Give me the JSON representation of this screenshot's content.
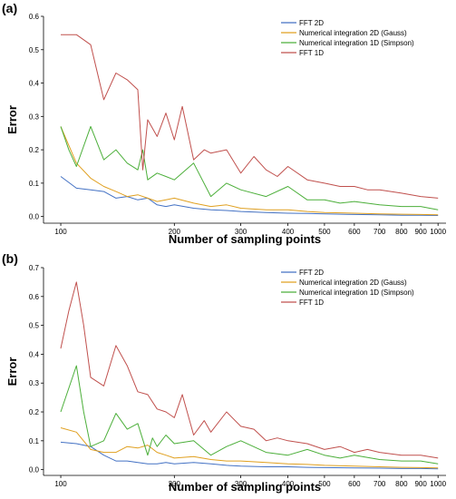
{
  "chart_data": [
    {
      "type": "line",
      "panel_label": "(a)",
      "xlabel": "Number of sampling points",
      "ylabel": "Error",
      "x_scale": "log",
      "xlim": [
        90,
        1050
      ],
      "ylim": [
        -0.02,
        0.6
      ],
      "x_ticks": [
        100,
        200,
        300,
        400,
        500,
        600,
        700,
        800,
        900,
        1000
      ],
      "x_tick_labels": [
        "100",
        "200",
        "300",
        "400",
        "500",
        "600",
        "700",
        "800",
        "900",
        "1000"
      ],
      "y_ticks": [
        0.0,
        0.1,
        0.2,
        0.3,
        0.4,
        0.5,
        0.6
      ],
      "y_tick_labels": [
        "0.0",
        "0.1",
        "0.2",
        "0.3",
        "0.4",
        "0.5",
        "0.6"
      ],
      "grid": false,
      "legend_position": "top-right",
      "series": [
        {
          "name": "FFT 2D",
          "color": "#4472c4",
          "x": [
            100,
            110,
            120,
            130,
            140,
            150,
            160,
            170,
            180,
            190,
            200,
            225,
            250,
            275,
            300,
            350,
            400,
            450,
            500,
            600,
            700,
            800,
            900,
            1000
          ],
          "y": [
            0.12,
            0.085,
            0.08,
            0.075,
            0.055,
            0.06,
            0.05,
            0.055,
            0.035,
            0.03,
            0.035,
            0.025,
            0.02,
            0.018,
            0.015,
            0.012,
            0.01,
            0.009,
            0.008,
            0.006,
            0.005,
            0.004,
            0.004,
            0.003
          ]
        },
        {
          "name": "Numerical integration 2D (Gauss)",
          "color": "#e0a020",
          "x": [
            100,
            110,
            120,
            130,
            140,
            150,
            160,
            170,
            180,
            190,
            200,
            225,
            250,
            275,
            300,
            350,
            400,
            450,
            500,
            600,
            700,
            800,
            900,
            1000
          ],
          "y": [
            0.27,
            0.16,
            0.115,
            0.09,
            0.075,
            0.06,
            0.065,
            0.055,
            0.045,
            0.05,
            0.055,
            0.04,
            0.03,
            0.035,
            0.025,
            0.02,
            0.02,
            0.015,
            0.012,
            0.01,
            0.008,
            0.007,
            0.006,
            0.005
          ]
        },
        {
          "name": "Numerical integration 1D (Simpson)",
          "color": "#4caf3a",
          "x": [
            100,
            105,
            110,
            120,
            130,
            140,
            150,
            160,
            165,
            170,
            180,
            190,
            200,
            225,
            250,
            275,
            300,
            350,
            400,
            450,
            500,
            550,
            600,
            700,
            800,
            900,
            1000
          ],
          "y": [
            0.27,
            0.2,
            0.15,
            0.27,
            0.17,
            0.2,
            0.16,
            0.14,
            0.2,
            0.11,
            0.13,
            0.12,
            0.11,
            0.16,
            0.06,
            0.1,
            0.08,
            0.06,
            0.09,
            0.05,
            0.05,
            0.04,
            0.045,
            0.035,
            0.03,
            0.03,
            0.02
          ]
        },
        {
          "name": "FFT 1D",
          "color": "#c0504d",
          "x": [
            100,
            110,
            120,
            130,
            140,
            150,
            160,
            165,
            170,
            180,
            190,
            200,
            210,
            225,
            240,
            250,
            275,
            300,
            325,
            350,
            375,
            400,
            450,
            500,
            550,
            600,
            650,
            700,
            800,
            900,
            1000
          ],
          "y": [
            0.545,
            0.545,
            0.515,
            0.35,
            0.43,
            0.41,
            0.38,
            0.14,
            0.29,
            0.24,
            0.31,
            0.23,
            0.33,
            0.17,
            0.2,
            0.19,
            0.2,
            0.13,
            0.18,
            0.14,
            0.12,
            0.15,
            0.11,
            0.1,
            0.09,
            0.09,
            0.08,
            0.08,
            0.07,
            0.06,
            0.055
          ]
        }
      ]
    },
    {
      "type": "line",
      "panel_label": "(b)",
      "xlabel": "Number of sampling points",
      "ylabel": "Error",
      "x_scale": "log",
      "xlim": [
        90,
        1050
      ],
      "ylim": [
        -0.02,
        0.7
      ],
      "x_ticks": [
        100,
        200,
        300,
        400,
        500,
        600,
        700,
        800,
        900,
        1000
      ],
      "x_tick_labels": [
        "100",
        "200",
        "300",
        "400",
        "500",
        "600",
        "700",
        "800",
        "900",
        "1000"
      ],
      "y_ticks": [
        0.0,
        0.1,
        0.2,
        0.3,
        0.4,
        0.5,
        0.6,
        0.7
      ],
      "y_tick_labels": [
        "0.0",
        "0.1",
        "0.2",
        "0.3",
        "0.4",
        "0.5",
        "0.6",
        "0.7"
      ],
      "grid": false,
      "legend_position": "top-right",
      "series": [
        {
          "name": "FFT 2D",
          "color": "#4472c4",
          "x": [
            100,
            110,
            120,
            130,
            140,
            150,
            160,
            170,
            180,
            190,
            200,
            225,
            250,
            275,
            300,
            350,
            400,
            450,
            500,
            600,
            700,
            800,
            900,
            1000
          ],
          "y": [
            0.095,
            0.09,
            0.08,
            0.05,
            0.03,
            0.03,
            0.025,
            0.02,
            0.02,
            0.025,
            0.02,
            0.025,
            0.02,
            0.015,
            0.012,
            0.01,
            0.01,
            0.008,
            0.007,
            0.006,
            0.005,
            0.004,
            0.004,
            0.003
          ]
        },
        {
          "name": "Numerical integration 2D (Gauss)",
          "color": "#e0a020",
          "x": [
            100,
            110,
            120,
            130,
            140,
            150,
            160,
            170,
            180,
            190,
            200,
            225,
            250,
            275,
            300,
            350,
            400,
            450,
            500,
            600,
            700,
            800,
            900,
            1000
          ],
          "y": [
            0.145,
            0.13,
            0.07,
            0.06,
            0.06,
            0.08,
            0.075,
            0.085,
            0.06,
            0.05,
            0.04,
            0.045,
            0.035,
            0.03,
            0.03,
            0.025,
            0.02,
            0.018,
            0.015,
            0.012,
            0.01,
            0.008,
            0.007,
            0.006
          ]
        },
        {
          "name": "Numerical integration 1D (Simpson)",
          "color": "#4caf3a",
          "x": [
            100,
            110,
            115,
            120,
            130,
            140,
            150,
            160,
            170,
            175,
            180,
            190,
            200,
            225,
            250,
            275,
            300,
            350,
            400,
            450,
            500,
            550,
            600,
            700,
            800,
            900,
            1000
          ],
          "y": [
            0.2,
            0.36,
            0.2,
            0.08,
            0.1,
            0.195,
            0.14,
            0.16,
            0.05,
            0.11,
            0.08,
            0.12,
            0.09,
            0.1,
            0.05,
            0.08,
            0.1,
            0.06,
            0.05,
            0.07,
            0.05,
            0.04,
            0.05,
            0.035,
            0.03,
            0.03,
            0.02
          ]
        },
        {
          "name": "FFT 1D",
          "color": "#c0504d",
          "x": [
            100,
            105,
            110,
            115,
            120,
            130,
            140,
            150,
            160,
            170,
            180,
            190,
            200,
            210,
            225,
            240,
            250,
            275,
            300,
            325,
            350,
            375,
            400,
            450,
            500,
            550,
            600,
            650,
            700,
            800,
            900,
            1000
          ],
          "y": [
            0.42,
            0.55,
            0.65,
            0.5,
            0.32,
            0.29,
            0.43,
            0.36,
            0.27,
            0.26,
            0.21,
            0.2,
            0.18,
            0.26,
            0.12,
            0.17,
            0.13,
            0.2,
            0.15,
            0.14,
            0.1,
            0.11,
            0.1,
            0.09,
            0.07,
            0.08,
            0.06,
            0.07,
            0.06,
            0.05,
            0.05,
            0.04
          ]
        }
      ]
    }
  ]
}
